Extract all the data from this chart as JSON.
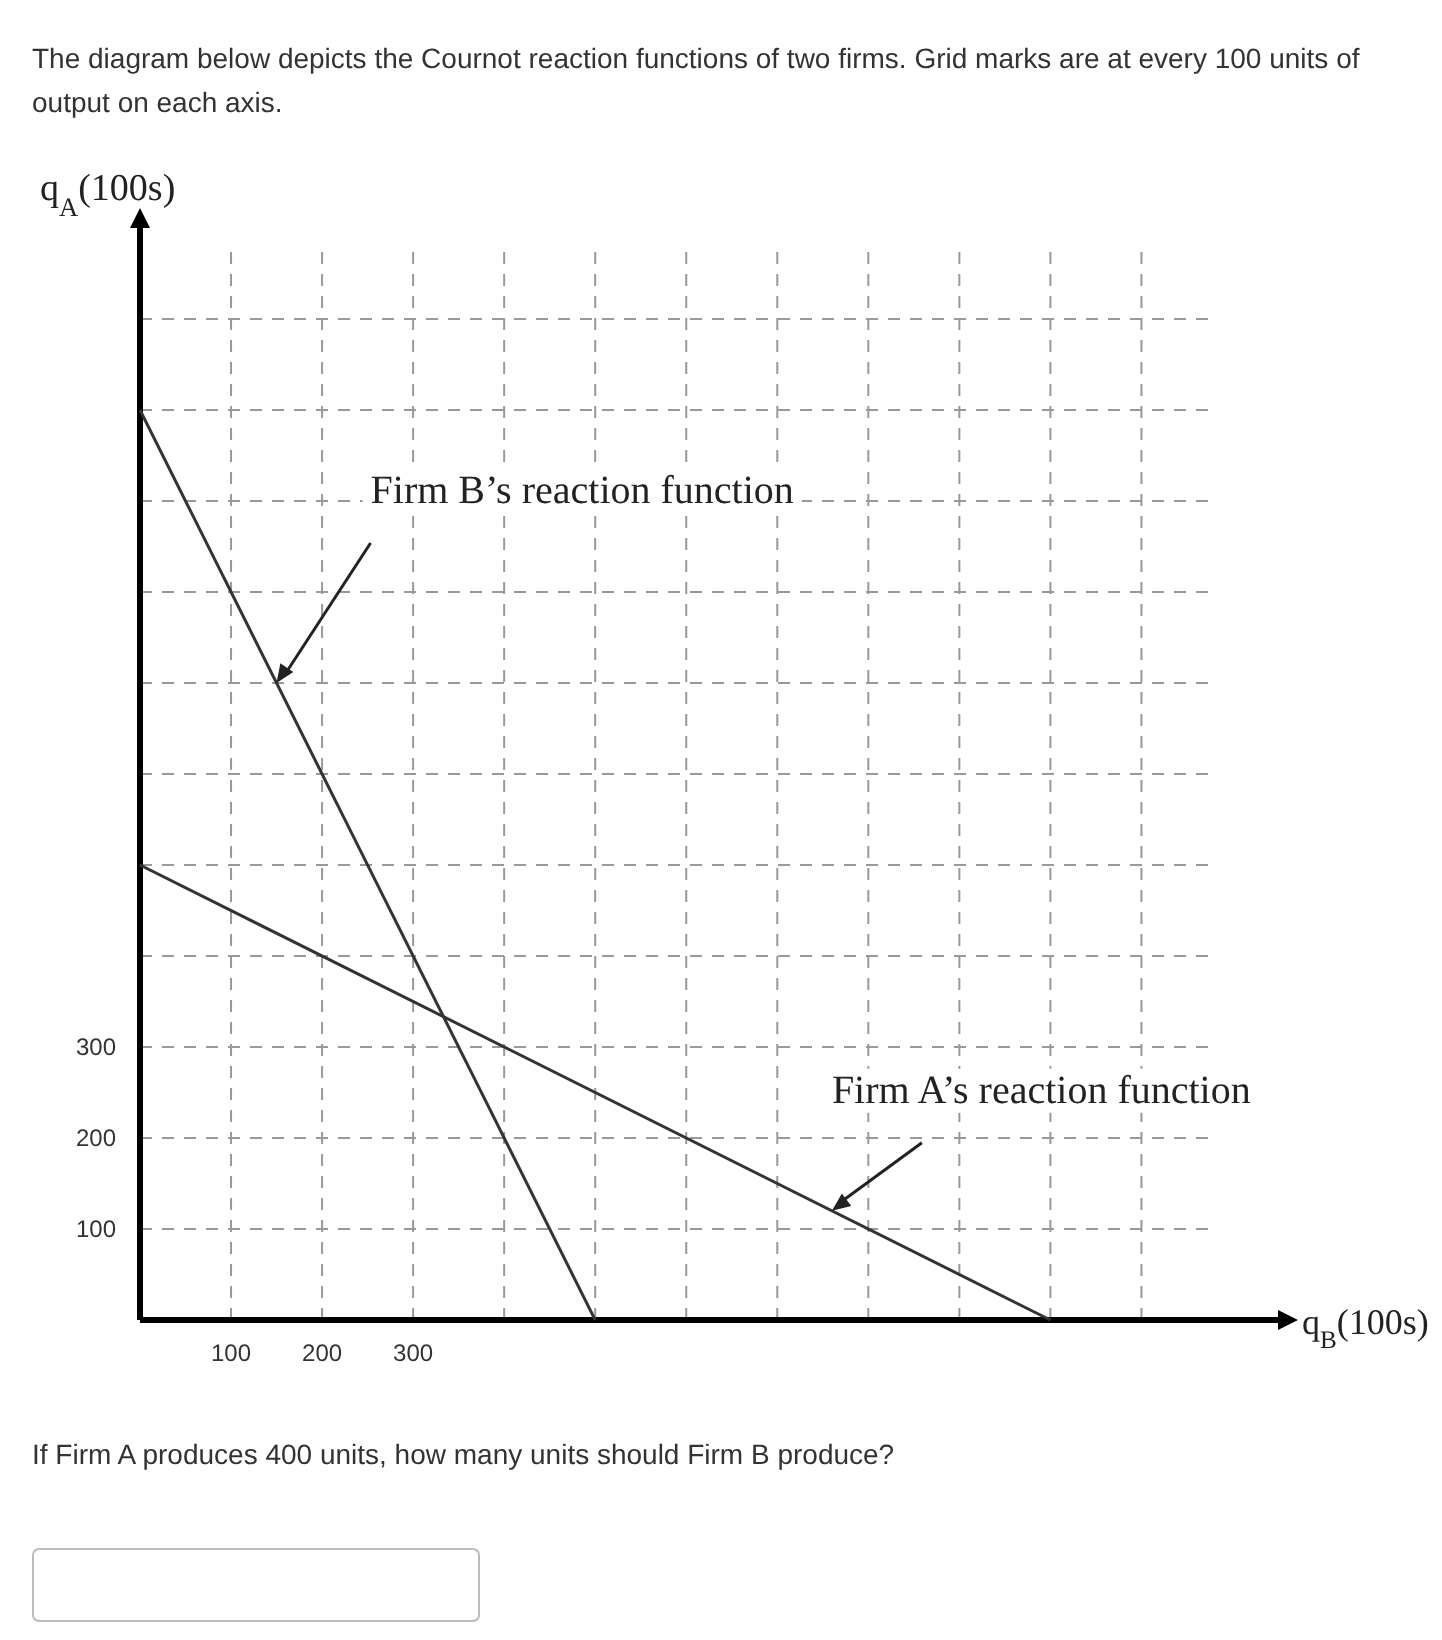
{
  "chart_data": {
    "type": "line",
    "title": "The diagram below depicts the Cournot reaction functions of two firms.  Grid marks are at every 100 units of output on each axis.",
    "xlabel": "q$_{B}$(100s)",
    "ylabel": "q$_{A}$(100s)",
    "xlim": [
      0,
      1250
    ],
    "ylim": [
      0,
      1200
    ],
    "xticks": [
      100,
      200,
      300,
      {
        "value": 400,
        "label": null
      },
      {
        "value": 500,
        "label": null
      },
      {
        "value": 600,
        "label": null
      },
      {
        "value": 700,
        "label": null
      },
      {
        "value": 800,
        "label": null
      },
      {
        "value": 900,
        "label": null
      },
      {
        "value": 1000,
        "label": null
      },
      {
        "value": 1100,
        "label": null
      }
    ],
    "yticks": [
      100,
      200,
      300,
      {
        "value": 400,
        "label": null
      },
      {
        "value": 500,
        "label": null
      },
      {
        "value": 600,
        "label": null
      },
      {
        "value": 700,
        "label": null
      },
      {
        "value": 800,
        "label": null
      },
      {
        "value": 900,
        "label": null
      },
      {
        "value": 1000,
        "label": null
      },
      {
        "value": 1100,
        "label": null
      }
    ],
    "grid": true,
    "marker": "none",
    "line_style": "solid",
    "series": [
      {
        "color": "#333333",
        "x": [
          0,
          500
        ],
        "values": [
          1000,
          0
        ]
      },
      {
        "color": "#333333",
        "x": [
          0,
          1000
        ],
        "values": [
          500,
          0
        ]
      }
    ],
    "annotations": [
      {
        "text": "Firm B’s reaction function",
        "x": 150,
        "y": 700
      },
      {
        "text": "Firm A’s reaction function",
        "x": 760,
        "y": 120
      },
      "If Firm A produces 400 units, how many units should Firm B produce?"
    ]
  }
}
